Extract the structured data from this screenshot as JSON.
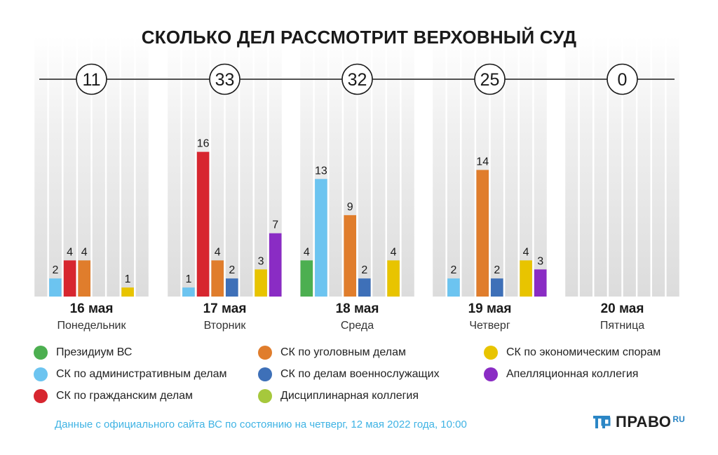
{
  "title": "СКОЛЬКО ДЕЛ РАССМОТРИТ ВЕРХОВНЫЙ СУД",
  "chart_data": {
    "type": "bar",
    "title": "СКОЛЬКО ДЕЛ РАССМОТРИТ ВЕРХОВНЫЙ СУД",
    "ylim": [
      0,
      16
    ],
    "legend_position": "bottom",
    "series": [
      {
        "name": "Президиум ВС",
        "color": "#4caf50"
      },
      {
        "name": "СК по административным делам",
        "color": "#6cc4f0"
      },
      {
        "name": "СК по гражданским делам",
        "color": "#d7262f"
      },
      {
        "name": "СК по уголовным делам",
        "color": "#e07d2c"
      },
      {
        "name": "СК по делам военнослужащих",
        "color": "#3e70b8"
      },
      {
        "name": "Дисциплинарная коллегия",
        "color": "#a6c83c"
      },
      {
        "name": "СК по экономическим спорам",
        "color": "#e8c400"
      },
      {
        "name": "Апелляционная коллегия",
        "color": "#8a2cc4"
      }
    ],
    "days": [
      {
        "date": "16 мая",
        "weekday": "Понедельник",
        "total": "11",
        "values": [
          0,
          2,
          4,
          4,
          0,
          0,
          1,
          0
        ]
      },
      {
        "date": "17 мая",
        "weekday": "Вторник",
        "total": "33",
        "values": [
          0,
          1,
          16,
          4,
          2,
          0,
          3,
          7
        ]
      },
      {
        "date": "18 мая",
        "weekday": "Среда",
        "total": "32",
        "values": [
          4,
          13,
          0,
          9,
          2,
          0,
          4,
          0
        ]
      },
      {
        "date": "19 мая",
        "weekday": "Четверг",
        "total": "25",
        "values": [
          0,
          2,
          0,
          14,
          2,
          0,
          4,
          3
        ]
      },
      {
        "date": "20 мая",
        "weekday": "Пятница",
        "total": "0",
        "values": [
          0,
          0,
          0,
          0,
          0,
          0,
          0,
          0
        ]
      }
    ]
  },
  "footnote": "Данные с официального сайта ВС по состоянию на четверг, 12 мая 2022 года, 10:00",
  "logo": {
    "brand": "ПРАВО",
    "domain": "RU"
  }
}
